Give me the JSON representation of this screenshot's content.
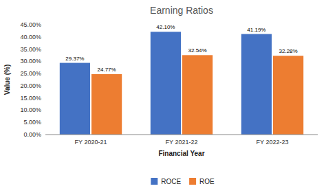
{
  "chart_data": {
    "type": "bar",
    "title": "Earning Ratios",
    "xlabel": "Financial Year",
    "ylabel": "Value (%)",
    "categories": [
      "FY 2020-21",
      "FY 2021-22",
      "FY 2022-23"
    ],
    "series": [
      {
        "name": "ROCE",
        "color": "#4472C4",
        "values": [
          29.37,
          42.1,
          41.19
        ],
        "value_labels": [
          "29.37%",
          "42.10%",
          "41.19%"
        ]
      },
      {
        "name": "ROE",
        "color": "#ED7D31",
        "values": [
          24.77,
          32.54,
          32.28
        ],
        "value_labels": [
          "24.77%",
          "32.54%",
          "32.28%"
        ]
      }
    ],
    "ylim": [
      0,
      45
    ],
    "yticks": [
      {
        "value": 0,
        "label": "0.00%"
      },
      {
        "value": 5,
        "label": "5.00%"
      },
      {
        "value": 10,
        "label": "10.00%"
      },
      {
        "value": 15,
        "label": "15.00%"
      },
      {
        "value": 20,
        "label": "20.00%"
      },
      {
        "value": 25,
        "label": "25.00%"
      },
      {
        "value": 30,
        "label": "30.00%"
      },
      {
        "value": 35,
        "label": "35.00%"
      },
      {
        "value": 40,
        "label": "40.00%"
      },
      {
        "value": 45,
        "label": "45.00%"
      }
    ],
    "grid": false,
    "legend": "bottom",
    "data_labels": true
  }
}
